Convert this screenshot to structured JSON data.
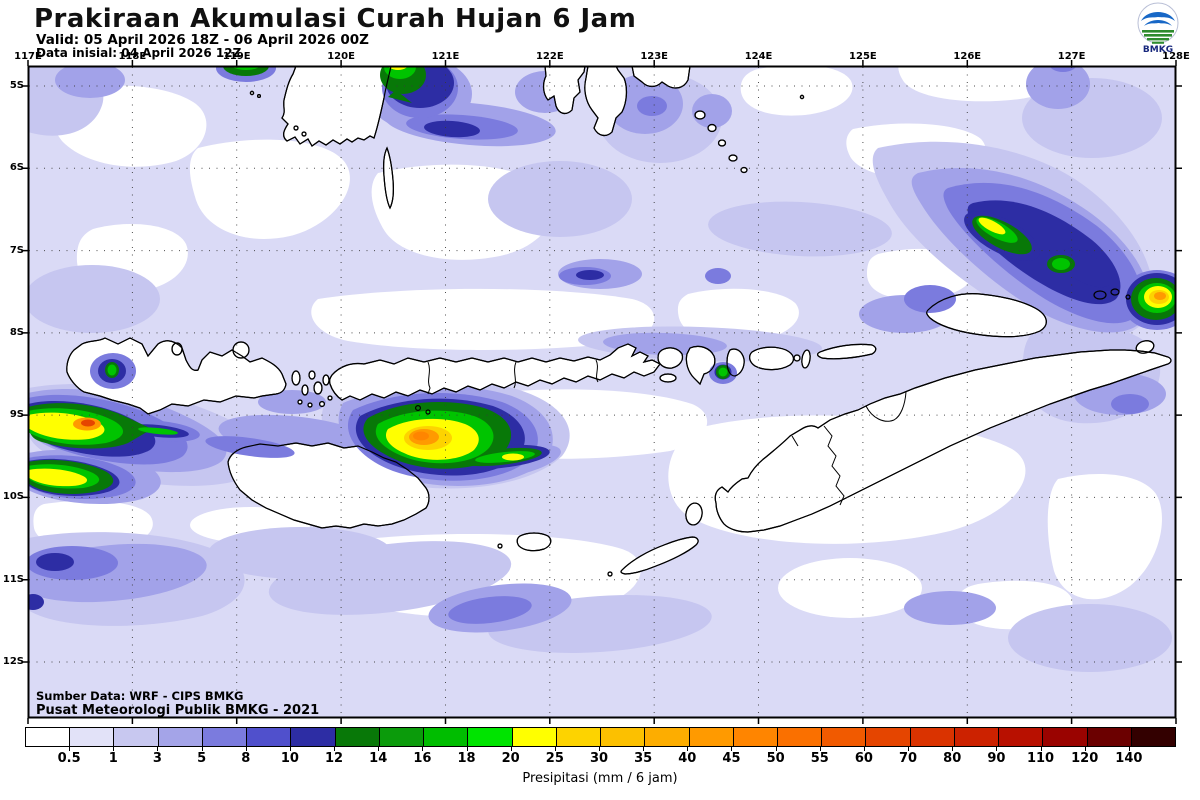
{
  "header": {
    "title": "Prakiraan Akumulasi Curah Hujan 6 Jam",
    "valid": "Valid: 05 April 2026 18Z - 06 April 2026 00Z",
    "init": "Data inisial: 04 April 2026 12Z"
  },
  "logo": {
    "text": "BMKG"
  },
  "axes": {
    "lon_labels": [
      "117E",
      "118E",
      "119E",
      "120E",
      "121E",
      "122E",
      "123E",
      "124E",
      "125E",
      "126E",
      "127E",
      "128E"
    ],
    "lat_labels": [
      "5S",
      "6S",
      "7S",
      "8S",
      "9S",
      "10S",
      "11S",
      "12S"
    ]
  },
  "credits": {
    "line1": "Sumber Data: WRF - CIPS BMKG",
    "line2": "Pusat Meteorologi Publik BMKG - 2021"
  },
  "colorbar": {
    "unit_label": "Presipitasi (mm / 6 jam)",
    "labels": [
      "0.5",
      "1",
      "3",
      "5",
      "8",
      "10",
      "12",
      "14",
      "16",
      "18",
      "20",
      "25",
      "30",
      "35",
      "40",
      "45",
      "50",
      "55",
      "60",
      "70",
      "80",
      "90",
      "110",
      "120",
      "140"
    ],
    "colors": [
      "#ffffff",
      "#e2e2f8",
      "#c8c8f0",
      "#a4a4e8",
      "#7b7bde",
      "#5050cc",
      "#2d2da4",
      "#087808",
      "#0b9b0b",
      "#00bd00",
      "#00e400",
      "#ffff00",
      "#fdd300",
      "#fcc000",
      "#fdad00",
      "#ff9a00",
      "#ff8500",
      "#fa7000",
      "#f15a00",
      "#e54500",
      "#da3300",
      "#cc2200",
      "#b81000",
      "#9a0300",
      "#6b0000",
      "#330000"
    ]
  }
}
